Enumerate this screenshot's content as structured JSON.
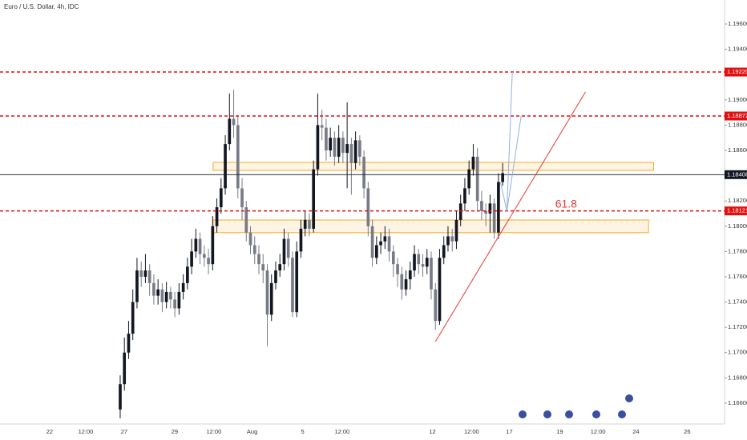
{
  "chart_data": {
    "type": "candlestick",
    "title": "Euro / U.S. Dollar, 4h, IDC",
    "x": [
      0,
      1,
      2,
      3,
      4,
      5,
      6,
      7,
      8,
      9,
      10,
      11,
      12,
      13,
      14,
      15,
      16,
      17,
      18,
      19,
      20,
      21,
      22,
      23,
      24,
      25,
      26,
      27,
      28,
      29,
      30,
      31,
      32,
      33,
      34,
      35,
      36,
      37,
      38,
      39,
      40,
      41,
      42,
      43,
      44,
      45,
      46,
      47,
      48,
      49,
      50,
      51,
      52,
      53,
      54,
      55,
      56,
      57,
      58,
      59,
      60,
      61,
      62,
      63,
      64,
      65,
      66,
      67,
      68,
      69,
      70,
      71,
      72,
      73,
      74,
      75,
      76,
      77,
      78,
      79,
      80,
      81,
      82,
      83,
      84,
      85,
      86,
      87,
      88,
      89,
      90,
      91
    ],
    "open": [
      1.1655,
      1.1675,
      1.17,
      1.1715,
      1.174,
      1.1765,
      1.176,
      1.1765,
      1.1755,
      1.1745,
      1.175,
      1.174,
      1.1748,
      1.1742,
      1.1735,
      1.1748,
      1.1755,
      1.1768,
      1.178,
      1.179,
      1.1778,
      1.1775,
      1.177,
      1.18,
      1.1815,
      1.183,
      1.1865,
      1.1885,
      1.188,
      1.183,
      1.1815,
      1.1795,
      1.1785,
      1.1778,
      1.177,
      1.1765,
      1.173,
      1.1755,
      1.1765,
      1.177,
      1.179,
      1.1775,
      1.1732,
      1.178,
      1.1798,
      1.1805,
      1.1798,
      1.1845,
      1.188,
      1.1878,
      1.186,
      1.187,
      1.1855,
      1.187,
      1.1858,
      1.1865,
      1.185,
      1.1868,
      1.1855,
      1.183,
      1.18,
      1.1775,
      1.1785,
      1.1788,
      1.1792,
      1.178,
      1.177,
      1.1762,
      1.175,
      1.1758,
      1.1765,
      1.1778,
      1.177,
      1.1768,
      1.1775,
      1.175,
      1.1725,
      1.1775,
      1.1785,
      1.1792,
      1.1788,
      1.1805,
      1.1818,
      1.183,
      1.1845,
      1.1855,
      1.182,
      1.1812,
      1.181,
      1.1818,
      1.1795,
      1.1835
    ],
    "high": [
      1.1682,
      1.1712,
      1.1725,
      1.175,
      1.1775,
      1.1772,
      1.1778,
      1.177,
      1.1762,
      1.1758,
      1.1755,
      1.1756,
      1.1752,
      1.1748,
      1.1755,
      1.1762,
      1.1775,
      1.179,
      1.1798,
      1.1795,
      1.1785,
      1.1782,
      1.1808,
      1.1822,
      1.1838,
      1.1872,
      1.1905,
      1.1908,
      1.1888,
      1.1838,
      1.182,
      1.18,
      1.1792,
      1.1785,
      1.1778,
      1.177,
      1.1762,
      1.1772,
      1.1778,
      1.1798,
      1.1795,
      1.178,
      1.1788,
      1.1805,
      1.1812,
      1.181,
      1.1852,
      1.1905,
      1.1892,
      1.1885,
      1.1878,
      1.1875,
      1.188,
      1.1875,
      1.1898,
      1.187,
      1.1875,
      1.1872,
      1.186,
      1.1835,
      1.1805,
      1.1792,
      1.1795,
      1.18,
      1.1798,
      1.1785,
      1.1775,
      1.1768,
      1.1765,
      1.1772,
      1.1785,
      1.1782,
      1.1778,
      1.1782,
      1.178,
      1.1755,
      1.1782,
      1.1792,
      1.18,
      1.1798,
      1.1812,
      1.1825,
      1.1838,
      1.1852,
      1.1865,
      1.1862,
      1.1828,
      1.1818,
      1.1825,
      1.1822,
      1.1842,
      1.185
    ],
    "low": [
      1.1648,
      1.167,
      1.1695,
      1.171,
      1.1735,
      1.1752,
      1.1755,
      1.1745,
      1.1738,
      1.1738,
      1.1732,
      1.1735,
      1.1735,
      1.1728,
      1.173,
      1.1742,
      1.175,
      1.1762,
      1.1775,
      1.177,
      1.1768,
      1.1762,
      1.1765,
      1.1795,
      1.181,
      1.1825,
      1.186,
      1.187,
      1.1822,
      1.1805,
      1.1788,
      1.1778,
      1.177,
      1.1762,
      1.1755,
      1.1705,
      1.1725,
      1.175,
      1.176,
      1.1765,
      1.1768,
      1.1728,
      1.1728,
      1.1775,
      1.1792,
      1.1792,
      1.1795,
      1.184,
      1.1868,
      1.1852,
      1.1855,
      1.1848,
      1.185,
      1.185,
      1.183,
      1.1825,
      1.1845,
      1.1848,
      1.1822,
      1.1792,
      1.1768,
      1.177,
      1.1778,
      1.1782,
      1.1772,
      1.176,
      1.1752,
      1.1742,
      1.1745,
      1.175,
      1.176,
      1.1762,
      1.176,
      1.1762,
      1.1742,
      1.1718,
      1.1722,
      1.177,
      1.178,
      1.178,
      1.1782,
      1.18,
      1.1812,
      1.1825,
      1.184,
      1.1812,
      1.1805,
      1.18,
      1.1795,
      1.179,
      1.179,
      1.1832
    ],
    "close": [
      1.1675,
      1.17,
      1.1715,
      1.174,
      1.1765,
      1.176,
      1.1765,
      1.1755,
      1.1745,
      1.175,
      1.174,
      1.1748,
      1.1742,
      1.1735,
      1.1748,
      1.1755,
      1.1768,
      1.178,
      1.179,
      1.1778,
      1.1775,
      1.177,
      1.18,
      1.1815,
      1.183,
      1.1865,
      1.1885,
      1.188,
      1.183,
      1.1815,
      1.1795,
      1.1785,
      1.1778,
      1.177,
      1.1765,
      1.173,
      1.1755,
      1.1765,
      1.177,
      1.179,
      1.1775,
      1.1732,
      1.178,
      1.1798,
      1.1805,
      1.1798,
      1.1845,
      1.188,
      1.1878,
      1.186,
      1.187,
      1.1855,
      1.187,
      1.1858,
      1.1865,
      1.185,
      1.1868,
      1.1855,
      1.183,
      1.18,
      1.1775,
      1.1785,
      1.1788,
      1.1792,
      1.178,
      1.177,
      1.1762,
      1.175,
      1.1758,
      1.1765,
      1.1778,
      1.177,
      1.1768,
      1.1775,
      1.175,
      1.1725,
      1.1775,
      1.1785,
      1.1792,
      1.1788,
      1.1805,
      1.1818,
      1.183,
      1.1845,
      1.1855,
      1.182,
      1.1812,
      1.181,
      1.1818,
      1.1795,
      1.1835,
      1.1842
    ],
    "up_color": "#131722",
    "down_color": "#787b86",
    "xlim": [
      -28.6,
      143.8
    ],
    "xticks": [
      {
        "value": -16.8,
        "label": "22"
      },
      {
        "value": -8.2,
        "label": "12:00"
      },
      {
        "value": 0.95,
        "label": "27"
      },
      {
        "value": 12.95,
        "label": "29"
      },
      {
        "value": 22.3,
        "label": "12:00"
      },
      {
        "value": 31.4,
        "label": "Aug"
      },
      {
        "value": 43.4,
        "label": "5"
      },
      {
        "value": 52.8,
        "label": "12:00"
      },
      {
        "value": 74.3,
        "label": "12"
      },
      {
        "value": 83.6,
        "label": "12:00"
      },
      {
        "value": 92.6,
        "label": "17"
      },
      {
        "value": 104.6,
        "label": "19"
      },
      {
        "value": 113.7,
        "label": "12:00"
      },
      {
        "value": 122.7,
        "label": "24"
      },
      {
        "value": 134.9,
        "label": "26"
      }
    ],
    "ylim": [
      1.16435,
      1.1979
    ],
    "yticks": [
      {
        "value": 1.166,
        "label": "1.16600"
      },
      {
        "value": 1.168,
        "label": "1.16800"
      },
      {
        "value": 1.17,
        "label": "1.17000"
      },
      {
        "value": 1.172,
        "label": "1.17200"
      },
      {
        "value": 1.174,
        "label": "1.17400"
      },
      {
        "value": 1.176,
        "label": "1.17600"
      },
      {
        "value": 1.178,
        "label": "1.17800"
      },
      {
        "value": 1.18,
        "label": "1.18000"
      },
      {
        "value": 1.182,
        "label": "1.18200"
      },
      {
        "value": 1.186,
        "label": "1.18600"
      },
      {
        "value": 1.188,
        "label": "1.18800"
      },
      {
        "value": 1.19,
        "label": "1.19000"
      },
      {
        "value": 1.194,
        "label": "1.19400"
      },
      {
        "value": 1.196,
        "label": "1.19600"
      }
    ],
    "levels": [
      {
        "value": 1.1922,
        "label": "1.19220",
        "color": "#e01010",
        "style": "dashed"
      },
      {
        "value": 1.18872,
        "label": "1.18872",
        "color": "#e01010",
        "style": "dashed"
      },
      {
        "value": 1.18408,
        "label": "1.18408",
        "color": "#131722",
        "style": "solid"
      },
      {
        "value": 1.18121,
        "label": "1.18121",
        "color": "#e01010",
        "style": "dashed"
      }
    ],
    "zones": [
      {
        "x": [
          22.1,
          126.9
        ],
        "y": [
          1.18442,
          1.18505
        ],
        "color": "#f5a623"
      },
      {
        "x": [
          22.1,
          125.7
        ],
        "y": [
          1.17949,
          1.18049
        ],
        "color": "#f5a623"
      }
    ],
    "lines": [
      {
        "x": [
          75.0,
          110.7
        ],
        "y": [
          1.17087,
          1.19062
        ],
        "color": "#e53935"
      },
      {
        "x": [
          90.5,
          92.0,
          93.3
        ],
        "y": [
          1.18347,
          1.18119,
          1.1922
        ],
        "color": "#8fb0e6"
      },
      {
        "x": [
          92.0,
          95.4
        ],
        "y": [
          1.18119,
          1.18872
        ],
        "color": "#8fb0e6"
      }
    ],
    "annotations": [
      {
        "text": "61.8",
        "x": 106.1,
        "y": 1.1817,
        "color": "#e53935"
      }
    ]
  }
}
